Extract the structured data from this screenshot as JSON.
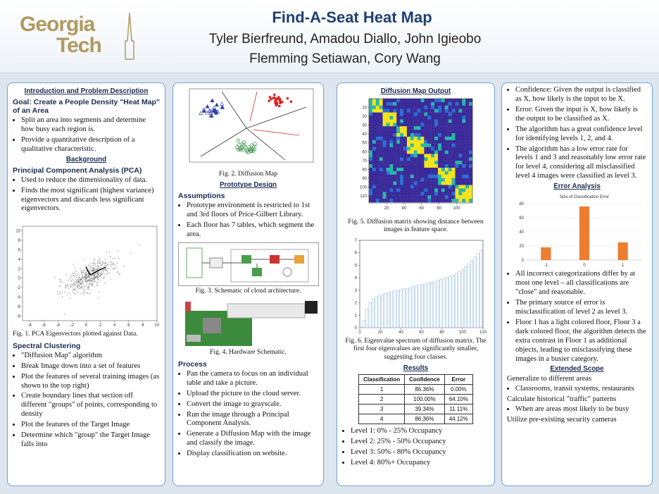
{
  "header": {
    "logo": [
      "Georgia",
      "Tech"
    ],
    "title": "Find-A-Seat Heat Map",
    "authors": [
      "Tyler Bierfreund, Amadou Diallo, John Igieobo",
      "Flemming Setiawan, Cory Wang"
    ]
  },
  "col1": {
    "intro_heading": "Introduction and Problem Description",
    "goal": "Goal: Create a People Density \"Heat Map\" of an Area",
    "goal_bullets": [
      "Split an area into segments and determine how busy each region is.",
      "Provide a quantitative description of a qualitative characteristic."
    ],
    "background_heading": "Background",
    "pca_heading": "Principal Component Analysis (PCA)",
    "pca_bullets": [
      "Used to reduce the dimensionality of data.",
      "Finds the most significant (highest variance) eigenvectors and discards less significant eigenvectors."
    ],
    "fig1": {
      "xticks": [
        -8,
        -6,
        -4,
        -2,
        0,
        2,
        4,
        6,
        8,
        10
      ],
      "yticks": [
        -8,
        -6,
        -4,
        -2,
        0,
        2,
        4,
        6,
        8,
        10
      ],
      "xlim": [
        -9,
        10
      ],
      "ylim": [
        -9,
        11
      ],
      "caption": "Fig. 1. PCA Eigenvectors plotted against Data."
    },
    "spectral_heading": "Spectral Clustering",
    "spectral_bullets": [
      "\"Diffusion Map\" algorithm",
      "Break Image down into a set of features",
      "Plot the features of several training images (as shown to the top right)",
      "Create boundary lines that section off different \"groups\" of points, corresponding to density",
      "Plot the features of the Target Image",
      "Determine which \"group\" the Target Image falls into"
    ]
  },
  "col2": {
    "fig2_caption": "Fig. 2. Diffusion Map",
    "prototype_heading": "Prototype Design",
    "assumptions_heading": "Assumptions",
    "assumptions": [
      "Prototype environment is restricted to 1st and 3rd floors of Price-Gilbert Library.",
      "Each floor has 7 tables, which segment the area."
    ],
    "fig3_caption": "Fig. 3. Schematic of cloud architecture.",
    "fig4_caption": "Fig. 4. Hardware Schematic.",
    "process_heading": "Process",
    "process": [
      "Pan the camera to focus on an individual table and take a picture.",
      "Upload the picture to the cloud server.",
      "Convert the image to grayscale.",
      "Run the image through a Principal Component Analysis.",
      "Generate a Diffusion Map with the image and classify the image.",
      "Display classification on website."
    ]
  },
  "col3": {
    "diffusion_heading": "Diffusion Map Output",
    "fig5": {
      "xticks": [
        20,
        40,
        60,
        80,
        100
      ],
      "yticks": [
        10,
        20,
        30,
        40,
        50,
        60,
        70,
        80,
        90,
        100,
        110
      ],
      "xlim": [
        0,
        118
      ],
      "ylim": [
        0,
        118
      ],
      "caption": "Fig. 5. Diffusion matrix showing distance between images in feature space."
    },
    "fig6": {
      "type": "bar",
      "x": [
        1,
        4,
        7,
        10,
        13,
        16,
        19,
        22,
        25,
        28,
        31,
        34,
        37,
        40,
        43,
        46,
        49,
        52,
        55,
        58,
        61,
        64,
        67,
        70,
        73,
        76,
        79,
        82,
        85,
        88,
        91,
        94,
        97,
        100,
        103,
        106,
        109,
        112,
        115,
        118
      ],
      "values": [
        0.05,
        0.6,
        1.5,
        2.0,
        2.3,
        2.45,
        2.55,
        2.65,
        2.75,
        2.8,
        2.9,
        2.95,
        3.0,
        3.05,
        3.1,
        3.15,
        3.2,
        3.3,
        3.35,
        3.4,
        3.45,
        3.5,
        3.6,
        3.65,
        3.7,
        3.8,
        3.85,
        3.95,
        4.05,
        4.1,
        4.2,
        4.35,
        4.5,
        4.7,
        4.9,
        5.1,
        5.4,
        5.7,
        5.95,
        6.2
      ],
      "color": "#a9cbe8",
      "xlim": [
        0,
        120
      ],
      "ylim": [
        0,
        7
      ],
      "xticks": [
        0,
        20,
        40,
        60,
        80,
        100,
        120
      ],
      "yticks": [
        0,
        1,
        2,
        3,
        4,
        5,
        6,
        7
      ],
      "caption": "Fig. 6. Eigenvalue spectrum of diffusion matrix. The first four eigenvalues are significantly smaller, suggesting four classes."
    },
    "results_heading": "Results",
    "results": {
      "headers": [
        "Classification",
        "Confidence",
        "Error"
      ],
      "rows": [
        [
          "1",
          "86.36%",
          "0.00%"
        ],
        [
          "2",
          "100.00%",
          "64.10%"
        ],
        [
          "3",
          "39.34%",
          "11.11%"
        ],
        [
          "4",
          "86.36%",
          "44.12%"
        ]
      ]
    },
    "levels": [
      "Level 1: 0% - 25% Occupancy",
      "Level 2: 25% - 50% Occupancy",
      "Level 3: 50% - 80% Occupancy",
      "Level 4: 80%+ Occupancy"
    ]
  },
  "col4": {
    "bullets": [
      "Confidence: Given the output is classified as X, how likely is the input to be X.",
      "Error: Given the input is X, how likely is the output to be classified as X.",
      "The algorithm has a great confidence level for identifying levels 1, 2, and 4.",
      "The algorithm has a low error rate for levels 1 and 3 and reasonably low error rate for level 4, considering all misclassified level 4 images were classified as level 3."
    ],
    "error_heading": "Error Analysis",
    "error_chart": {
      "type": "bar",
      "title": "Size of Classification Error",
      "categories": [
        "-1",
        "0",
        "1"
      ],
      "values": [
        18,
        76,
        25
      ],
      "color": "#ed7d31",
      "ylim": [
        0,
        80
      ],
      "yticks": [
        0,
        20,
        40,
        60,
        80
      ]
    },
    "bullets2": [
      "All incorrect categorizations differ by at most one level – all classifications are \"close\" and reasonable.",
      "The primary source of error is misclassification of level 2 as level 3.",
      "Floor 1 has a light colored floor, Floor 3 a dark colored floor, the algorithm detects the extra contrast in Floor 1 as additional objects, leading to misclassifying these images in a busier category."
    ],
    "extended_heading": "Extended Scope",
    "extended": [
      {
        "text": "Generalize to different areas",
        "items": [
          "Classrooms, transit systems, restaurants"
        ]
      },
      {
        "text": "Calculate historical \"traffic\" patterns",
        "items": [
          "When are areas most likely to be busy"
        ]
      },
      {
        "text": "Utilize pre-existing security cameras",
        "items": []
      }
    ]
  }
}
